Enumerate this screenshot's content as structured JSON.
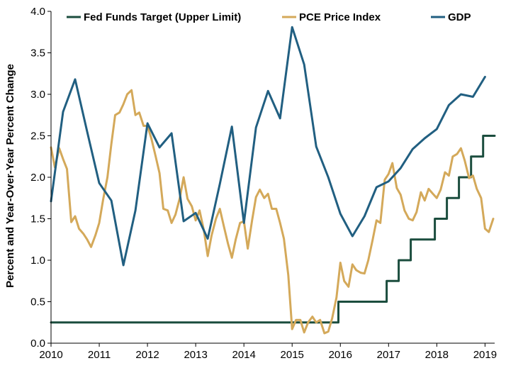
{
  "chart_data": {
    "type": "line",
    "title": "",
    "xlabel": "",
    "ylabel": "Percent and Year-Over-Year Percent Change",
    "xlim": [
      2010,
      2019.2
    ],
    "ylim": [
      0,
      4.0
    ],
    "grid": false,
    "legend_placement": "top",
    "x_ticks": [
      "2010",
      "2011",
      "2012",
      "2013",
      "2014",
      "2015",
      "2016",
      "2017",
      "2018",
      "2019"
    ],
    "y_ticks": [
      "0.0",
      "0.5",
      "1.0",
      "1.5",
      "2.0",
      "2.5",
      "3.0",
      "3.5",
      "4.0"
    ],
    "series": [
      {
        "name": "Fed Funds Target (Upper Limit)",
        "color": "#1b4d3e",
        "step": true,
        "points": [
          [
            2010.0,
            0.25
          ],
          [
            2015.96,
            0.25
          ],
          [
            2015.96,
            0.5
          ],
          [
            2016.96,
            0.5
          ],
          [
            2016.96,
            0.75
          ],
          [
            2017.21,
            0.75
          ],
          [
            2017.21,
            1.0
          ],
          [
            2017.46,
            1.0
          ],
          [
            2017.46,
            1.25
          ],
          [
            2017.96,
            1.25
          ],
          [
            2017.96,
            1.5
          ],
          [
            2018.21,
            1.5
          ],
          [
            2018.21,
            1.75
          ],
          [
            2018.46,
            1.75
          ],
          [
            2018.46,
            2.0
          ],
          [
            2018.71,
            2.0
          ],
          [
            2018.71,
            2.25
          ],
          [
            2018.96,
            2.25
          ],
          [
            2018.96,
            2.5
          ],
          [
            2019.2,
            2.5
          ]
        ]
      },
      {
        "name": "PCE Price Index",
        "color": "#d4a95a",
        "step": false,
        "points": [
          [
            2010.0,
            2.36
          ],
          [
            2010.08,
            2.12
          ],
          [
            2010.17,
            2.35
          ],
          [
            2010.25,
            2.22
          ],
          [
            2010.33,
            2.1
          ],
          [
            2010.42,
            1.46
          ],
          [
            2010.5,
            1.53
          ],
          [
            2010.58,
            1.38
          ],
          [
            2010.67,
            1.32
          ],
          [
            2010.75,
            1.25
          ],
          [
            2010.83,
            1.16
          ],
          [
            2010.92,
            1.3
          ],
          [
            2011.0,
            1.45
          ],
          [
            2011.08,
            1.73
          ],
          [
            2011.17,
            2.0
          ],
          [
            2011.25,
            2.4
          ],
          [
            2011.33,
            2.75
          ],
          [
            2011.42,
            2.78
          ],
          [
            2011.5,
            2.88
          ],
          [
            2011.58,
            3.0
          ],
          [
            2011.67,
            3.05
          ],
          [
            2011.75,
            2.75
          ],
          [
            2011.83,
            2.78
          ],
          [
            2011.92,
            2.62
          ],
          [
            2012.0,
            2.62
          ],
          [
            2012.08,
            2.47
          ],
          [
            2012.17,
            2.25
          ],
          [
            2012.25,
            2.05
          ],
          [
            2012.33,
            1.62
          ],
          [
            2012.42,
            1.6
          ],
          [
            2012.5,
            1.45
          ],
          [
            2012.58,
            1.55
          ],
          [
            2012.67,
            1.75
          ],
          [
            2012.75,
            2.0
          ],
          [
            2012.83,
            1.74
          ],
          [
            2012.92,
            1.65
          ],
          [
            2013.0,
            1.48
          ],
          [
            2013.08,
            1.6
          ],
          [
            2013.17,
            1.36
          ],
          [
            2013.25,
            1.05
          ],
          [
            2013.33,
            1.3
          ],
          [
            2013.42,
            1.5
          ],
          [
            2013.5,
            1.62
          ],
          [
            2013.58,
            1.42
          ],
          [
            2013.67,
            1.2
          ],
          [
            2013.75,
            1.03
          ],
          [
            2013.83,
            1.25
          ],
          [
            2013.92,
            1.45
          ],
          [
            2014.0,
            1.47
          ],
          [
            2014.08,
            1.14
          ],
          [
            2014.17,
            1.48
          ],
          [
            2014.25,
            1.76
          ],
          [
            2014.33,
            1.85
          ],
          [
            2014.42,
            1.75
          ],
          [
            2014.5,
            1.8
          ],
          [
            2014.58,
            1.62
          ],
          [
            2014.67,
            1.62
          ],
          [
            2014.75,
            1.45
          ],
          [
            2014.83,
            1.26
          ],
          [
            2014.92,
            0.82
          ],
          [
            2015.0,
            0.17
          ],
          [
            2015.08,
            0.28
          ],
          [
            2015.17,
            0.28
          ],
          [
            2015.25,
            0.13
          ],
          [
            2015.33,
            0.25
          ],
          [
            2015.42,
            0.32
          ],
          [
            2015.5,
            0.25
          ],
          [
            2015.58,
            0.28
          ],
          [
            2015.67,
            0.12
          ],
          [
            2015.75,
            0.14
          ],
          [
            2015.83,
            0.3
          ],
          [
            2015.92,
            0.55
          ],
          [
            2016.0,
            0.97
          ],
          [
            2016.08,
            0.75
          ],
          [
            2016.17,
            0.68
          ],
          [
            2016.25,
            0.95
          ],
          [
            2016.33,
            0.88
          ],
          [
            2016.42,
            0.85
          ],
          [
            2016.5,
            0.84
          ],
          [
            2016.58,
            1.0
          ],
          [
            2016.67,
            1.25
          ],
          [
            2016.75,
            1.48
          ],
          [
            2016.83,
            1.45
          ],
          [
            2016.92,
            1.97
          ],
          [
            2017.0,
            2.04
          ],
          [
            2017.08,
            2.17
          ],
          [
            2017.17,
            1.87
          ],
          [
            2017.25,
            1.79
          ],
          [
            2017.33,
            1.6
          ],
          [
            2017.42,
            1.5
          ],
          [
            2017.5,
            1.48
          ],
          [
            2017.58,
            1.58
          ],
          [
            2017.67,
            1.82
          ],
          [
            2017.75,
            1.72
          ],
          [
            2017.83,
            1.86
          ],
          [
            2017.92,
            1.8
          ],
          [
            2018.0,
            1.75
          ],
          [
            2018.08,
            1.85
          ],
          [
            2018.17,
            2.06
          ],
          [
            2018.25,
            2.02
          ],
          [
            2018.33,
            2.25
          ],
          [
            2018.42,
            2.28
          ],
          [
            2018.5,
            2.35
          ],
          [
            2018.58,
            2.2
          ],
          [
            2018.67,
            1.99
          ],
          [
            2018.75,
            2.02
          ],
          [
            2018.83,
            1.86
          ],
          [
            2018.92,
            1.75
          ],
          [
            2019.0,
            1.38
          ],
          [
            2019.08,
            1.34
          ],
          [
            2019.17,
            1.5
          ]
        ]
      },
      {
        "name": "GDP",
        "color": "#215f81",
        "step": false,
        "points": [
          [
            2010.0,
            1.71
          ],
          [
            2010.25,
            2.79
          ],
          [
            2010.5,
            3.18
          ],
          [
            2010.75,
            2.55
          ],
          [
            2011.0,
            1.93
          ],
          [
            2011.25,
            1.72
          ],
          [
            2011.5,
            0.94
          ],
          [
            2011.75,
            1.6
          ],
          [
            2012.0,
            2.65
          ],
          [
            2012.25,
            2.36
          ],
          [
            2012.5,
            2.53
          ],
          [
            2012.75,
            1.47
          ],
          [
            2013.0,
            1.57
          ],
          [
            2013.25,
            1.26
          ],
          [
            2013.5,
            1.92
          ],
          [
            2013.75,
            2.61
          ],
          [
            2014.0,
            1.45
          ],
          [
            2014.25,
            2.6
          ],
          [
            2014.5,
            3.04
          ],
          [
            2014.75,
            2.71
          ],
          [
            2015.0,
            3.81
          ],
          [
            2015.25,
            3.36
          ],
          [
            2015.5,
            2.37
          ],
          [
            2015.75,
            2.0
          ],
          [
            2016.0,
            1.56
          ],
          [
            2016.25,
            1.29
          ],
          [
            2016.5,
            1.53
          ],
          [
            2016.75,
            1.88
          ],
          [
            2017.0,
            1.95
          ],
          [
            2017.25,
            2.11
          ],
          [
            2017.5,
            2.34
          ],
          [
            2017.75,
            2.47
          ],
          [
            2018.0,
            2.58
          ],
          [
            2018.25,
            2.87
          ],
          [
            2018.5,
            3.0
          ],
          [
            2018.75,
            2.97
          ],
          [
            2019.0,
            3.21
          ]
        ]
      }
    ]
  }
}
